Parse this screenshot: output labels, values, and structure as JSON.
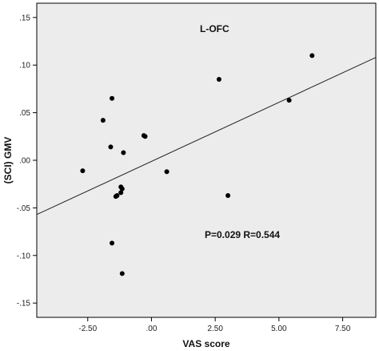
{
  "chart_data": {
    "type": "scatter",
    "title": "",
    "xlabel": "VAS score",
    "ylabel": "(SCI)  GMV",
    "xlim": [
      -4.5,
      8.8
    ],
    "ylim": [
      -0.165,
      0.165
    ],
    "x_ticks": [
      -2.5,
      0,
      2.5,
      5,
      7.5
    ],
    "x_tick_labels": [
      "-2.50",
      ".00",
      "2.50",
      "5.00",
      "7.50"
    ],
    "y_ticks": [
      -0.15,
      -0.1,
      -0.05,
      0,
      0.05,
      0.1,
      0.15
    ],
    "y_tick_labels": [
      "-.15",
      "-.10",
      "-.05",
      ".00",
      ".05",
      ".10",
      ".15"
    ],
    "grid": false,
    "plot_background": "#ececec",
    "point_color": "#000000",
    "line_color": "#222222",
    "annotations": [
      {
        "text": "L-OFC"
      },
      {
        "text": "P=0.029  R=0.544"
      }
    ],
    "fit_line": {
      "x": [
        -4.5,
        8.8
      ],
      "y": [
        -0.057,
        0.108
      ]
    },
    "series": [
      {
        "x": [
          -2.7,
          -1.9,
          -1.55,
          -1.6,
          -1.4,
          -1.35,
          -1.2,
          -1.15,
          -1.2,
          -1.1,
          -1.55,
          -1.15,
          -0.3,
          -0.25,
          0.6,
          2.65,
          3.0,
          5.4,
          6.3
        ],
        "y": [
          -0.011,
          0.042,
          0.065,
          0.014,
          -0.038,
          -0.037,
          -0.028,
          -0.03,
          -0.034,
          0.008,
          -0.087,
          -0.119,
          0.026,
          0.025,
          -0.012,
          0.085,
          -0.037,
          0.063,
          0.11
        ]
      }
    ]
  }
}
